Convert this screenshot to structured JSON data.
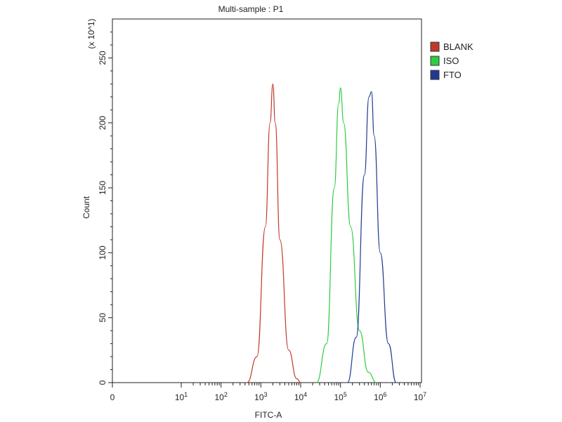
{
  "chart_data": {
    "type": "line",
    "title": "Multi-sample : P1",
    "xlabel": "FITC-A",
    "ylabel": "Count",
    "y_scale_note": "(x 10^1)",
    "x_scale": "log",
    "xlim": [
      0,
      10000000
    ],
    "ylim": [
      0,
      280
    ],
    "x_ticks": [
      {
        "value": 0,
        "label": "0"
      },
      {
        "value": 10,
        "label": "10^1"
      },
      {
        "value": 100,
        "label": "10^2"
      },
      {
        "value": 1000,
        "label": "10^3"
      },
      {
        "value": 10000,
        "label": "10^4"
      },
      {
        "value": 100000,
        "label": "10^5"
      },
      {
        "value": 1000000,
        "label": "10^6"
      },
      {
        "value": 10000000,
        "label": "10^7"
      }
    ],
    "y_ticks": [
      0,
      50,
      100,
      150,
      200,
      250
    ],
    "legend_position": "top-right, outside plot",
    "grid": false,
    "series": [
      {
        "name": "BLANK",
        "color": "#c0392b",
        "x": [
          450,
          800,
          1300,
          1700,
          2000,
          2300,
          3000,
          5000,
          8000,
          10000
        ],
        "y": [
          0,
          20,
          120,
          200,
          230,
          200,
          110,
          25,
          3,
          0
        ]
      },
      {
        "name": "ISO",
        "color": "#2ecc40",
        "x": [
          25000,
          45000,
          70000,
          90000,
          100000,
          120000,
          180000,
          300000,
          500000,
          800000
        ],
        "y": [
          0,
          30,
          150,
          215,
          227,
          200,
          120,
          40,
          8,
          0
        ]
      },
      {
        "name": "FTO",
        "color": "#1f3a93",
        "x": [
          150000,
          250000,
          400000,
          520000,
          600000,
          700000,
          1000000,
          1600000,
          2500000
        ],
        "y": [
          0,
          35,
          160,
          220,
          224,
          190,
          100,
          30,
          0
        ]
      }
    ]
  }
}
